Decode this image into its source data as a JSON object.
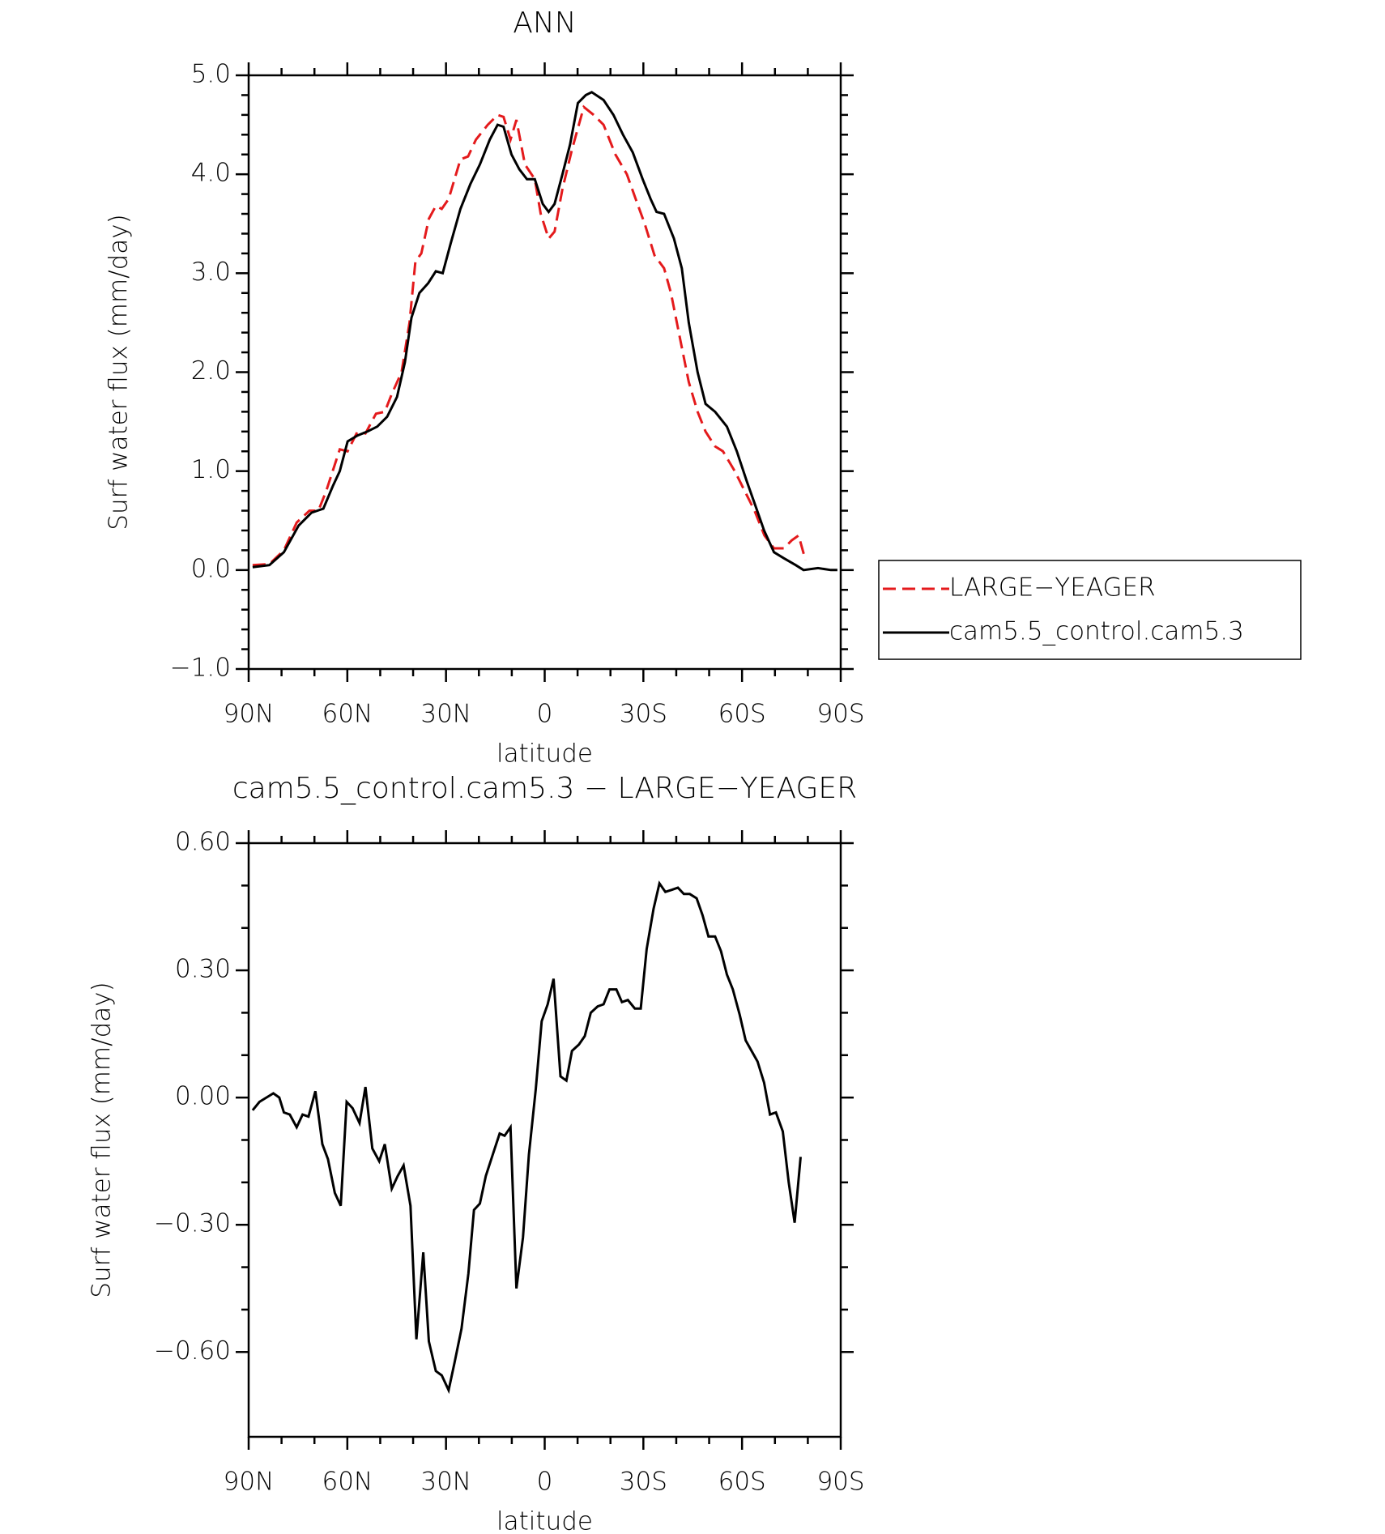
{
  "chart_data": [
    {
      "type": "line",
      "title": "ANN",
      "xlabel": "latitude",
      "ylabel": "Surf water flux (mm/day)",
      "xlim": [
        90,
        -90
      ],
      "xticks": [
        {
          "value": 90,
          "label": "90N"
        },
        {
          "value": 60,
          "label": "60N"
        },
        {
          "value": 30,
          "label": "30N"
        },
        0,
        {
          "value": -30,
          "label": "30S"
        },
        {
          "value": -60,
          "label": "60S"
        },
        {
          "value": -90,
          "label": "90S"
        }
      ],
      "ylim": [
        -1,
        5
      ],
      "yticks": [
        {
          "value": 5,
          "label": "5.0"
        },
        {
          "value": 4,
          "label": "4.0"
        },
        {
          "value": 3,
          "label": "3.0"
        },
        {
          "value": 2,
          "label": "2.0"
        },
        {
          "value": 1,
          "label": "1.0"
        },
        {
          "value": 0,
          "label": "0.0"
        },
        {
          "value": -1,
          "label": "−1.0"
        }
      ],
      "legend": "right",
      "series": [
        {
          "name": "LARGE−YEAGER",
          "color": "#e41a1c",
          "style": "dashed",
          "x": [
            88.8,
            83.7,
            79.3,
            75.4,
            71.5,
            68.8,
            66.4,
            62.3,
            59.9,
            56.9,
            54.5,
            51.3,
            48.6,
            46.5,
            43.5,
            41.1,
            39.3,
            37.5,
            35.2,
            33.1,
            31.3,
            29.2,
            25.6,
            23.3,
            20.9,
            17.3,
            14.3,
            12.5,
            10.4,
            8.6,
            6,
            3,
            1.2,
            -1.2,
            -3,
            -5.4,
            -8.3,
            -11.9,
            -14.9,
            -17.9,
            -21.5,
            -25,
            -28,
            -30.4,
            -33.4,
            -36.3,
            -38.4,
            -41.4,
            -43.8,
            -46.5,
            -48.9,
            -51.8,
            -54.2,
            -57.8,
            -60.8,
            -63.8,
            -66.8,
            -69.7,
            -72.7,
            -75.1,
            -77.2,
            -79.3
          ],
          "values": [
            0.05,
            0.06,
            0.2,
            0.48,
            0.6,
            0.6,
            0.8,
            1.22,
            1.2,
            1.4,
            1.38,
            1.58,
            1.6,
            1.78,
            2.0,
            2.5,
            3.12,
            3.2,
            3.55,
            3.68,
            3.65,
            3.75,
            4.15,
            4.18,
            4.35,
            4.5,
            4.6,
            4.58,
            4.35,
            4.55,
            4.1,
            3.95,
            3.6,
            3.35,
            3.42,
            3.85,
            4.25,
            4.68,
            4.6,
            4.5,
            4.2,
            4.0,
            3.72,
            3.5,
            3.18,
            3.05,
            2.8,
            2.3,
            1.9,
            1.6,
            1.4,
            1.25,
            1.2,
            1.0,
            0.8,
            0.6,
            0.35,
            0.22,
            0.22,
            0.3,
            0.35,
            0.1
          ]
        },
        {
          "name": "cam5.5_control.cam5.3",
          "color": "#000000",
          "style": "solid",
          "x": [
            88.8,
            83.7,
            79.3,
            74.8,
            70.9,
            67.3,
            64.4,
            62.3,
            59.9,
            56.9,
            53.9,
            50.9,
            47.9,
            44.9,
            42.5,
            40.5,
            38.1,
            35.4,
            33.1,
            31.0,
            28.6,
            25.6,
            22.6,
            19.7,
            16.7,
            14.3,
            12.5,
            10.1,
            7.7,
            5.4,
            3.0,
            0.6,
            -1.2,
            -3.0,
            -5.4,
            -7.7,
            -10.1,
            -12.5,
            -14.3,
            -17.9,
            -20.9,
            -23.8,
            -26.8,
            -29.8,
            -32.2,
            -34.0,
            -36.3,
            -39.3,
            -41.7,
            -43.8,
            -46.5,
            -48.9,
            -51.8,
            -55.4,
            -58.4,
            -61.4,
            -64.4,
            -66.7,
            -69.7,
            -72.7,
            -76.3,
            -78.7,
            -83.1,
            -87.0,
            -89
          ],
          "values": [
            0.03,
            0.05,
            0.18,
            0.45,
            0.58,
            0.62,
            0.85,
            1.0,
            1.3,
            1.36,
            1.4,
            1.45,
            1.55,
            1.75,
            2.1,
            2.55,
            2.8,
            2.9,
            3.02,
            3.0,
            3.3,
            3.65,
            3.9,
            4.1,
            4.35,
            4.5,
            4.48,
            4.2,
            4.05,
            3.95,
            3.95,
            3.7,
            3.62,
            3.7,
            4.0,
            4.3,
            4.72,
            4.8,
            4.83,
            4.75,
            4.6,
            4.4,
            4.22,
            3.95,
            3.75,
            3.62,
            3.6,
            3.35,
            3.05,
            2.5,
            2.0,
            1.68,
            1.6,
            1.45,
            1.2,
            0.9,
            0.62,
            0.4,
            0.18,
            0.12,
            0.05,
            0.0,
            0.02,
            0.0,
            0.0
          ]
        }
      ]
    },
    {
      "type": "line",
      "title": "cam5.5_control.cam5.3 − LARGE−YEAGER",
      "xlabel": "latitude",
      "ylabel": "Surf water flux (mm/day)",
      "xlim": [
        90,
        -90
      ],
      "xticks": [
        {
          "value": 90,
          "label": "90N"
        },
        {
          "value": 60,
          "label": "60N"
        },
        {
          "value": 30,
          "label": "30N"
        },
        0,
        {
          "value": -30,
          "label": "30S"
        },
        {
          "value": -60,
          "label": "60S"
        },
        {
          "value": -90,
          "label": "90S"
        }
      ],
      "ylim": [
        -0.8,
        0.6
      ],
      "yticks": [
        {
          "value": 0.6,
          "label": "0.60"
        },
        {
          "value": 0.3,
          "label": "0.30"
        },
        {
          "value": 0,
          "label": "0.00"
        },
        {
          "value": -0.3,
          "label": "−0.30"
        },
        {
          "value": -0.6,
          "label": "−0.60"
        }
      ],
      "series": [
        {
          "color": "#000000",
          "style": "solid",
          "x": [
            88.8,
            86.7,
            82.5,
            80.7,
            79.3,
            77.5,
            75.4,
            73.6,
            71.8,
            69.7,
            67.6,
            65.9,
            63.8,
            62.0,
            60.2,
            58.4,
            56.3,
            54.5,
            52.4,
            50.3,
            48.6,
            46.5,
            44.7,
            42.9,
            40.8,
            39.0,
            36.9,
            35.2,
            33.1,
            31.3,
            29.2,
            27.4,
            25.3,
            23.2,
            21.5,
            19.7,
            17.9,
            15.8,
            13.7,
            12.2,
            10.4,
            8.6,
            6.6,
            4.8,
            2.7,
            0.9,
            -0.9,
            -2.7,
            -4.8,
            -6.6,
            -8.3,
            -10.4,
            -12.2,
            -14.0,
            -16.1,
            -17.9,
            -19.7,
            -21.8,
            -23.5,
            -25.3,
            -27.4,
            -29.2,
            -31.0,
            -33.1,
            -34.9,
            -36.7,
            -38.7,
            -40.5,
            -42.3,
            -44.1,
            -46.2,
            -48.0,
            -49.8,
            -51.8,
            -53.6,
            -55.4,
            -57.2,
            -59.3,
            -61.1,
            -62.9,
            -64.7,
            -66.7,
            -68.5,
            -70.3,
            -72.4,
            -74.2,
            -76.0,
            -77.8
          ],
          "values": [
            -0.03,
            -0.01,
            0.01,
            0,
            -0.035,
            -0.04,
            -0.07,
            -0.04,
            -0.045,
            0.015,
            -0.11,
            -0.145,
            -0.225,
            -0.255,
            -0.01,
            -0.025,
            -0.06,
            0.025,
            -0.12,
            -0.15,
            -0.11,
            -0.215,
            -0.185,
            -0.16,
            -0.255,
            -0.57,
            -0.365,
            -0.575,
            -0.645,
            -0.655,
            -0.69,
            -0.625,
            -0.545,
            -0.415,
            -0.265,
            -0.25,
            -0.185,
            -0.135,
            -0.085,
            -0.09,
            -0.07,
            -0.45,
            -0.33,
            -0.135,
            0.02,
            0.18,
            0.22,
            0.28,
            0.05,
            0.04,
            0.11,
            0.125,
            0.145,
            0.2,
            0.215,
            0.22,
            0.255,
            0.255,
            0.225,
            0.23,
            0.21,
            0.21,
            0.35,
            0.445,
            0.505,
            0.485,
            0.49,
            0.495,
            0.48,
            0.48,
            0.47,
            0.43,
            0.38,
            0.38,
            0.345,
            0.29,
            0.255,
            0.195,
            0.135,
            0.11,
            0.085,
            0.035,
            -0.04,
            -0.035,
            -0.08,
            -0.2,
            -0.295,
            -0.14
          ]
        }
      ]
    }
  ]
}
